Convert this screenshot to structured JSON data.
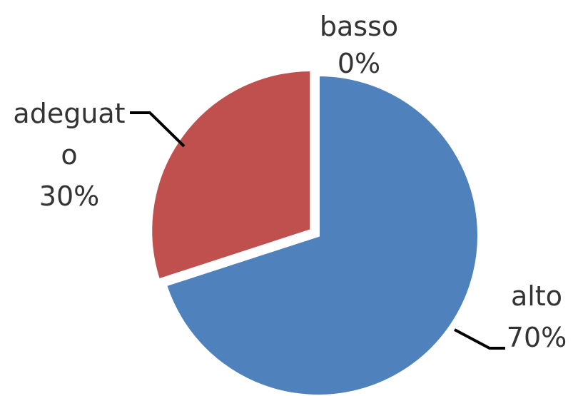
{
  "chart_data": {
    "type": "pie",
    "title": "",
    "categories": [
      "alto",
      "adeguato",
      "basso"
    ],
    "values": [
      70,
      30,
      0
    ],
    "unit": "%",
    "colors": {
      "alto": "#4F81BD",
      "adeguato": "#C0504D",
      "basso": "#9BBB59"
    },
    "start_angle_deg": 0,
    "direction": "clockwise",
    "exploded": [
      "adeguato"
    ],
    "legend": "none",
    "data_labels": [
      {
        "category": "basso",
        "lines": [
          "basso",
          "0%"
        ]
      },
      {
        "category": "adeguato",
        "lines": [
          "adeguat",
          "o",
          "30%"
        ]
      },
      {
        "category": "alto",
        "lines": [
          "alto",
          "70%"
        ]
      }
    ]
  }
}
